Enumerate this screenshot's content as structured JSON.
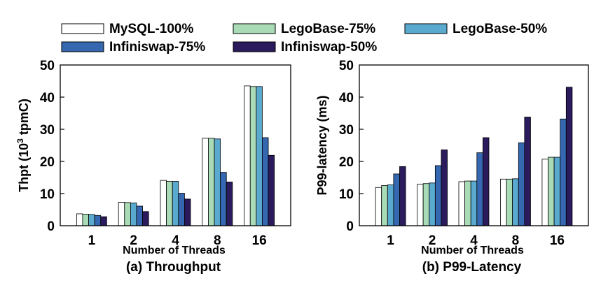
{
  "legend": {
    "items": [
      {
        "label": "MySQL-100%",
        "color": "#ffffff"
      },
      {
        "label": "LegoBase-75%",
        "color": "#a9dbb6"
      },
      {
        "label": "LegoBase-50%",
        "color": "#5aaad0"
      },
      {
        "label": "Infiniswap-75%",
        "color": "#3568b0"
      },
      {
        "label": "Infiniswap-50%",
        "color": "#2b1a5c"
      }
    ]
  },
  "chart_data": [
    {
      "type": "bar",
      "caption": "(a) Throughput",
      "ylabel": "Thpt (10",
      "ylabel_sup": "3",
      "ylabel_tail": " tpmC)",
      "xlabel": "Number of Threads",
      "categories": [
        "1",
        "2",
        "4",
        "8",
        "16"
      ],
      "ylim": [
        0,
        50
      ],
      "yticks": [
        "0",
        "10",
        "20",
        "30",
        "40",
        "50"
      ],
      "series": [
        {
          "name": "MySQL-100%",
          "values": [
            3.7,
            7.3,
            14.1,
            27.2,
            43.5
          ]
        },
        {
          "name": "LegoBase-75%",
          "values": [
            3.6,
            7.2,
            13.8,
            27.2,
            43.3
          ]
        },
        {
          "name": "LegoBase-50%",
          "values": [
            3.5,
            7.1,
            13.8,
            27.0,
            43.3
          ]
        },
        {
          "name": "Infiniswap-75%",
          "values": [
            3.2,
            6.1,
            10.1,
            16.6,
            27.4
          ]
        },
        {
          "name": "Infiniswap-50%",
          "values": [
            2.8,
            4.4,
            8.3,
            13.6,
            21.9
          ]
        }
      ]
    },
    {
      "type": "bar",
      "caption": "(b) P99-Latency",
      "ylabel": "P99-latency (ms)",
      "xlabel": "Number of Threads",
      "categories": [
        "1",
        "2",
        "4",
        "8",
        "16"
      ],
      "ylim": [
        0,
        50
      ],
      "yticks": [
        "0",
        "10",
        "20",
        "30",
        "40",
        "50"
      ],
      "series": [
        {
          "name": "MySQL-100%",
          "values": [
            11.9,
            12.9,
            13.7,
            14.5,
            20.7
          ]
        },
        {
          "name": "LegoBase-75%",
          "values": [
            12.5,
            13.1,
            13.9,
            14.5,
            21.3
          ]
        },
        {
          "name": "LegoBase-50%",
          "values": [
            12.7,
            13.3,
            13.9,
            14.6,
            21.3
          ]
        },
        {
          "name": "Infiniswap-75%",
          "values": [
            16.1,
            18.7,
            22.7,
            25.8,
            33.2
          ]
        },
        {
          "name": "Infiniswap-50%",
          "values": [
            18.4,
            23.6,
            27.4,
            33.8,
            43.1
          ]
        }
      ]
    }
  ]
}
